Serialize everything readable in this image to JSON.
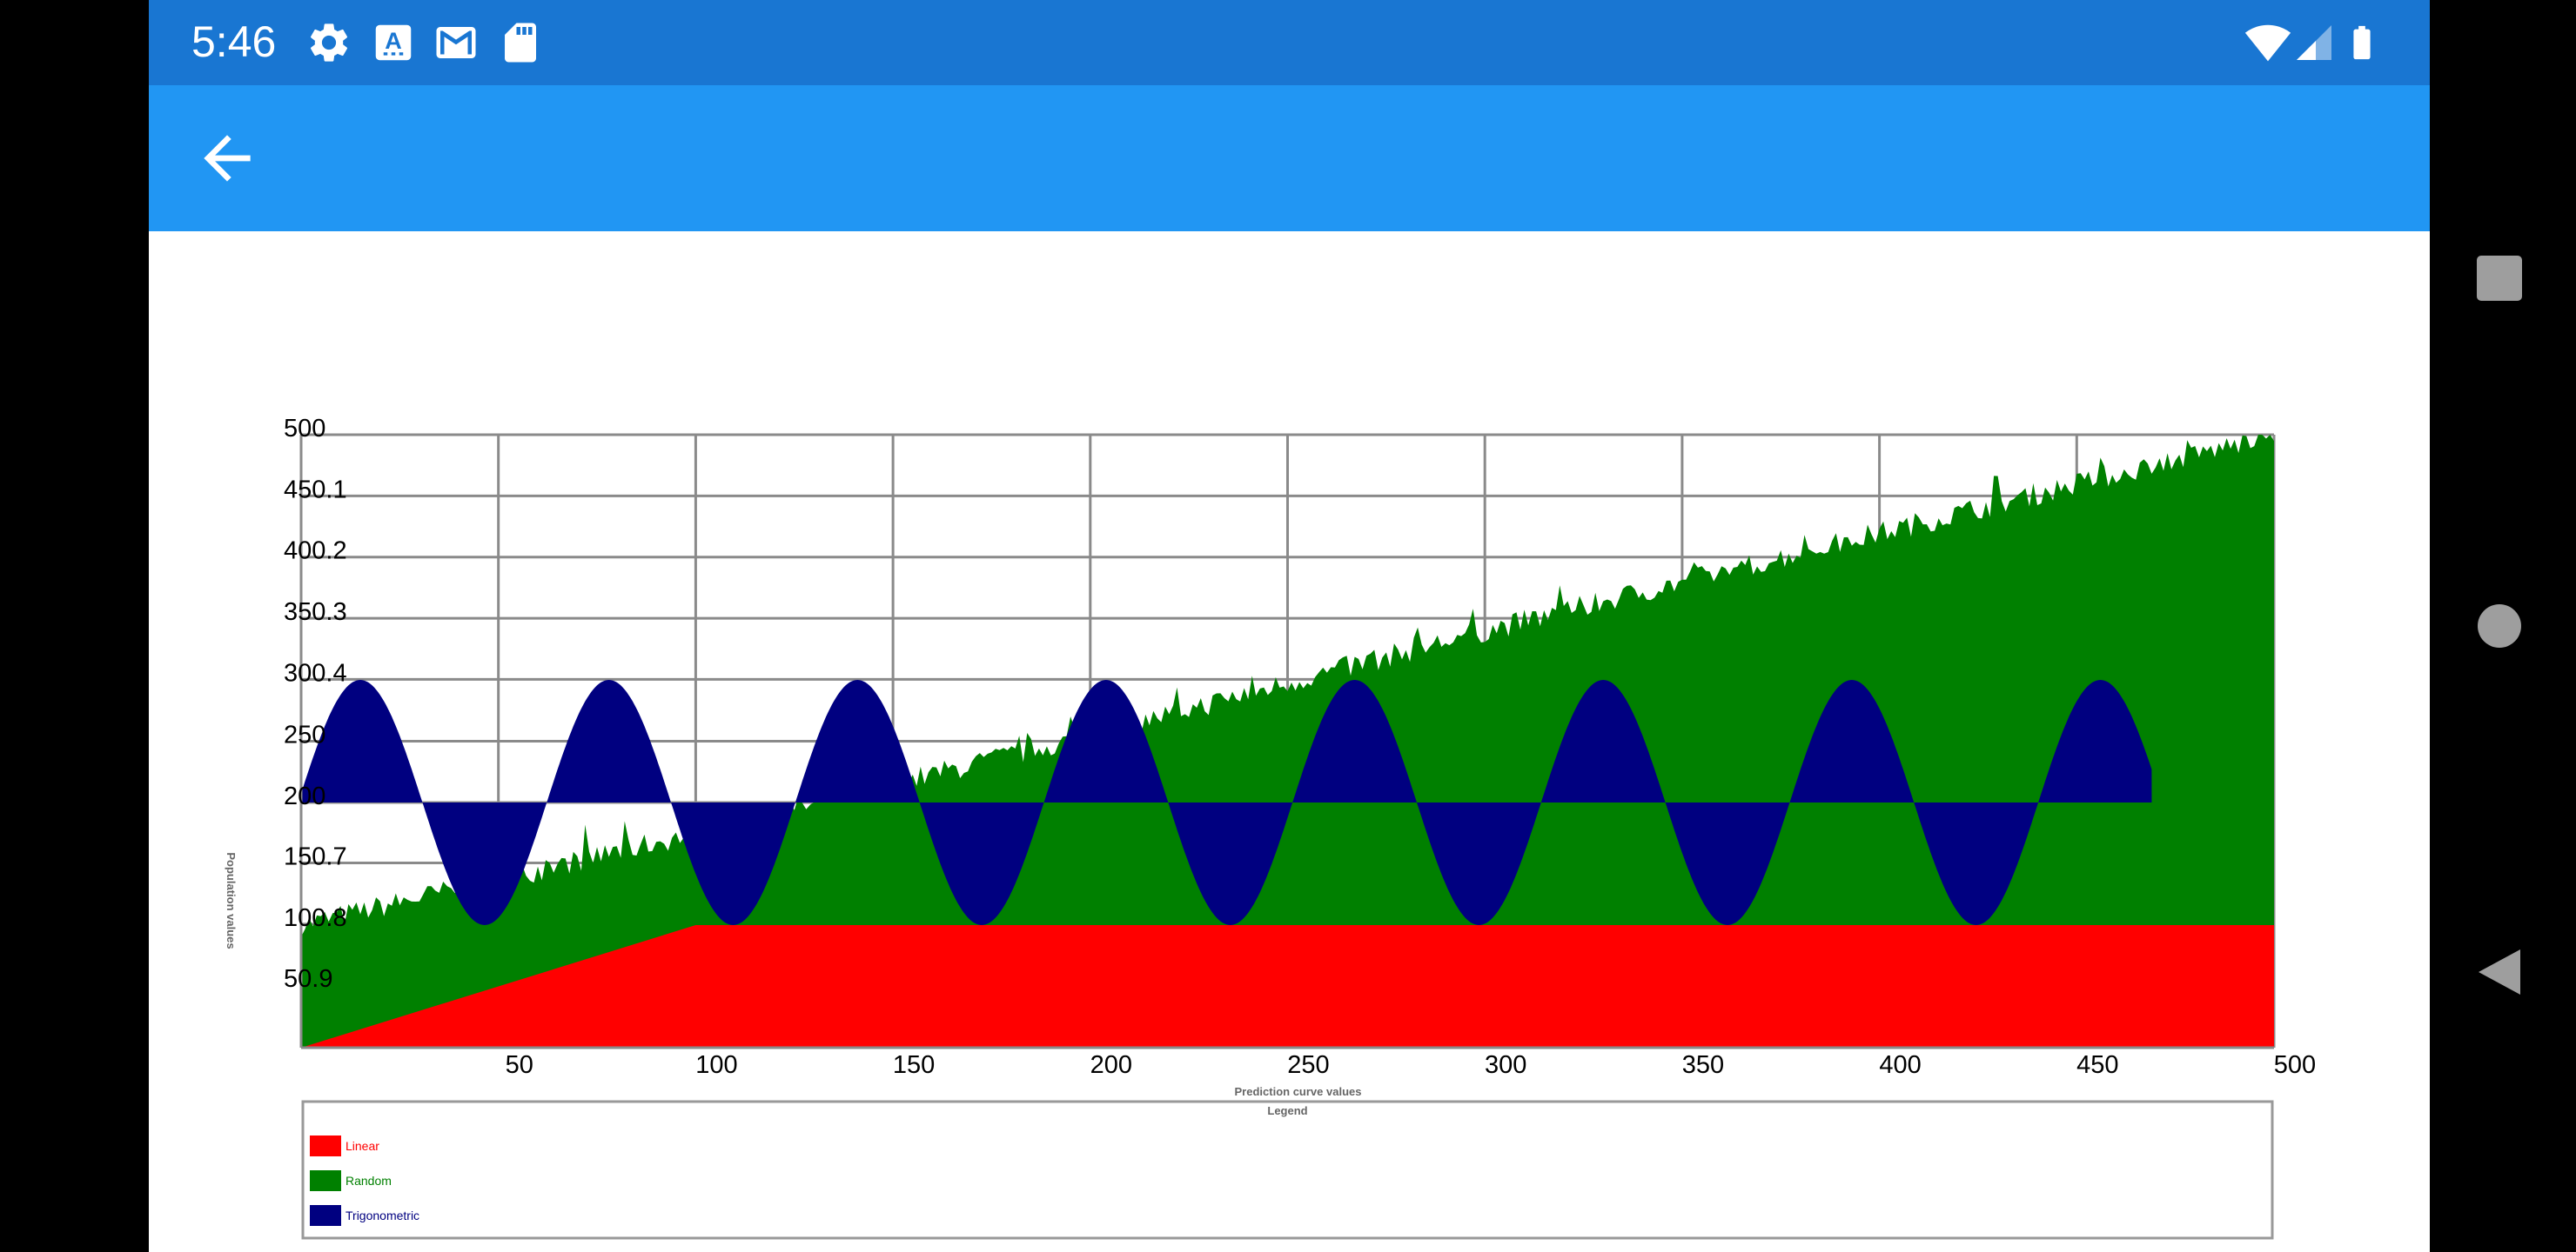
{
  "status_bar": {
    "time": "5:46",
    "left_icons": [
      "gear-icon",
      "a-keyboard-icon",
      "gmail-icon",
      "sd-card-icon"
    ],
    "right_icons": [
      "wifi-icon",
      "cellular-signal-icon",
      "battery-icon"
    ],
    "color": "#1976d2"
  },
  "app_bar": {
    "back_icon": "arrow-back-icon",
    "color": "#2196f3"
  },
  "nav_bar": {
    "icons": [
      "recents-square-icon",
      "home-circle-icon",
      "back-triangle-icon"
    ]
  },
  "chart_data": {
    "type": "area",
    "title": "",
    "xlabel": "Prediction curve values",
    "ylabel": "Population values",
    "xlim": [
      0,
      500
    ],
    "ylim": [
      0,
      500
    ],
    "x_ticks": [
      "50",
      "100",
      "150",
      "200",
      "250",
      "300",
      "350",
      "400",
      "450",
      "500"
    ],
    "y_ticks": [
      "50.9",
      "100.8",
      "150.7",
      "200",
      "250",
      "300.4",
      "350.3",
      "400.2",
      "450.1",
      "500"
    ],
    "grid": true,
    "legend": {
      "title": "Legend",
      "placement": "bottom",
      "entries": [
        {
          "label": "Linear",
          "color": "#ff0000"
        },
        {
          "label": "Random",
          "color": "#008000"
        },
        {
          "label": "Trigonometric",
          "color": "#000080"
        }
      ]
    },
    "series": [
      {
        "name": "Linear",
        "color": "#ff0000",
        "description_points": [
          [
            0,
            0
          ],
          [
            100,
            100
          ],
          [
            500,
            100
          ]
        ]
      },
      {
        "name": "Random",
        "color": "#008000",
        "trend_points": [
          [
            0,
            100
          ],
          [
            100,
            175
          ],
          [
            200,
            255
          ],
          [
            300,
            340
          ],
          [
            400,
            420
          ],
          [
            500,
            500
          ]
        ],
        "noise_amplitude": 12
      },
      {
        "name": "Trigonometric",
        "color": "#000080",
        "baseline": 200,
        "amplitude": 100,
        "period": 63,
        "peak_x": 15,
        "x_range": [
          0,
          469
        ]
      }
    ]
  }
}
